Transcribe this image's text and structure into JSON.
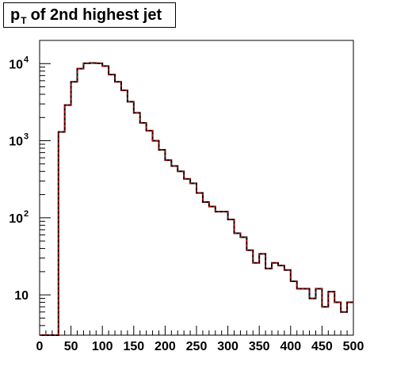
{
  "title": {
    "main": "p",
    "sub": "T",
    "rest": "of 2nd highest jet"
  },
  "chart_data": {
    "type": "line",
    "title": "pT of 2nd highest jet",
    "xlabel": "",
    "ylabel": "",
    "y_scale": "log",
    "xlim": [
      0,
      500
    ],
    "ylim": [
      3,
      20000
    ],
    "x_ticks": [
      "0",
      "50",
      "100",
      "150",
      "200",
      "250",
      "300",
      "350",
      "400",
      "450",
      "500"
    ],
    "y_ticks": [
      {
        "base": "10",
        "exp": "",
        "value": 10
      },
      {
        "base": "10",
        "exp": "2",
        "value": 100
      },
      {
        "base": "10",
        "exp": "3",
        "value": 1000
      },
      {
        "base": "10",
        "exp": "4",
        "value": 10000
      }
    ],
    "bin_width": 10,
    "bin_low_edges": [
      0,
      10,
      20,
      30,
      40,
      50,
      60,
      70,
      80,
      90,
      100,
      110,
      120,
      130,
      140,
      150,
      160,
      170,
      180,
      190,
      200,
      210,
      220,
      230,
      240,
      250,
      260,
      270,
      280,
      290,
      300,
      310,
      320,
      330,
      340,
      350,
      360,
      370,
      380,
      390,
      400,
      410,
      420,
      430,
      440,
      450,
      460,
      470,
      480,
      490
    ],
    "series": [
      {
        "values": [
          0,
          0,
          0,
          1300,
          2900,
          5800,
          8600,
          10100,
          10200,
          10100,
          9300,
          7200,
          5800,
          4500,
          3200,
          2300,
          1700,
          1350,
          1000,
          760,
          560,
          470,
          400,
          320,
          280,
          210,
          160,
          140,
          120,
          120,
          95,
          63,
          56,
          38,
          26,
          34,
          22,
          26,
          24,
          21,
          15,
          12,
          12,
          9,
          12,
          7,
          11,
          8,
          6,
          8
        ],
        "color": "#000000",
        "overlay_color": "#dd0000",
        "overlay_style": "dashed"
      }
    ],
    "legend": "none",
    "grid": false
  }
}
